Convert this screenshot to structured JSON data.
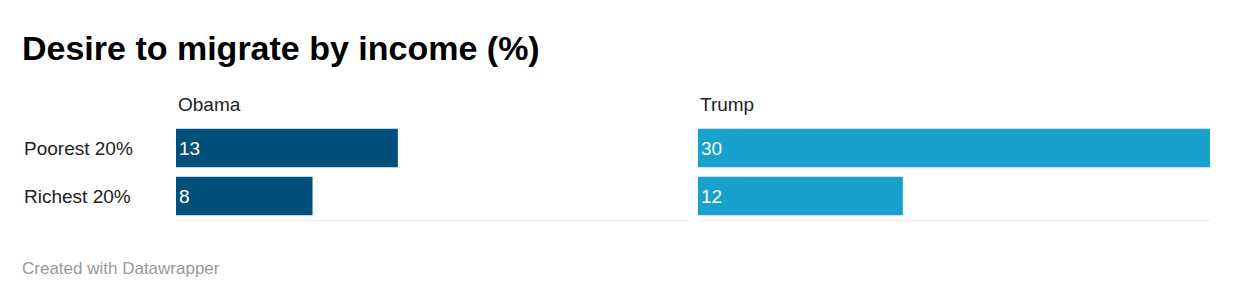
{
  "chart_data": {
    "type": "bar",
    "title": "Desire to migrate by income (%)",
    "orientation": "horizontal",
    "categories": [
      "Poorest 20%",
      "Richest 20%"
    ],
    "series": [
      {
        "name": "Obama",
        "color": "#01507b",
        "values": [
          13,
          8
        ]
      },
      {
        "name": "Trump",
        "color": "#18a1cd",
        "values": [
          30,
          12
        ]
      }
    ],
    "xlim": [
      0,
      30
    ],
    "data_labels": true,
    "tick_labels": "y",
    "grid": false,
    "footer": "Created with Datawrapper"
  }
}
